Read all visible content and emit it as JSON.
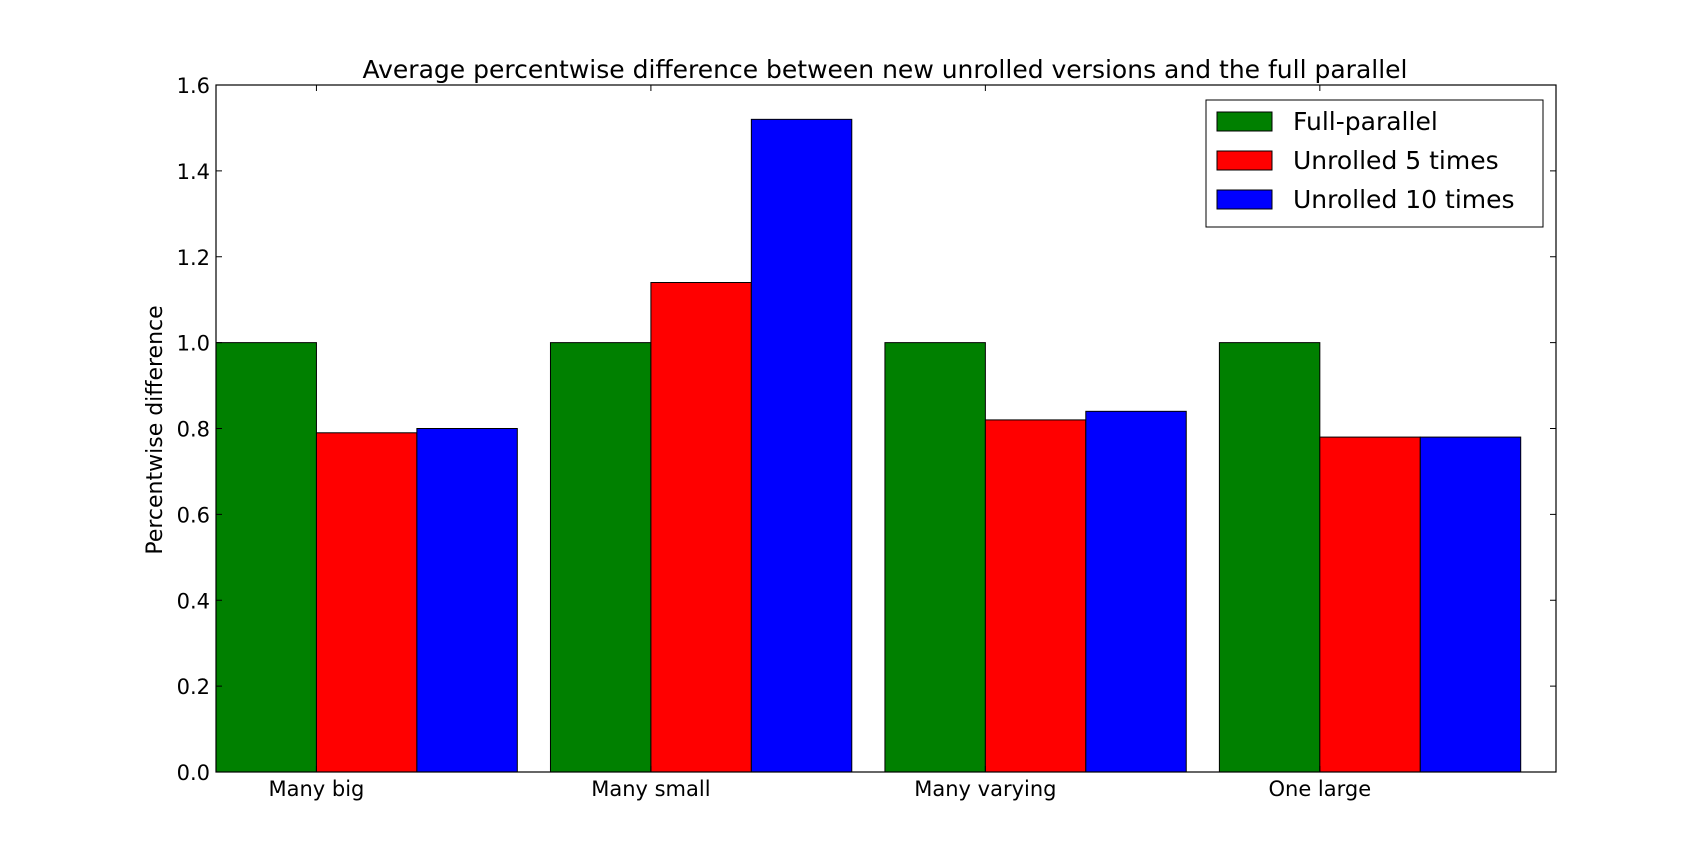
{
  "chart_data": {
    "type": "bar",
    "title": "Average percentwise difference between new unrolled versions and the full parallel",
    "xlabel": "",
    "ylabel": "Percentwise difference",
    "ylim": [
      0.0,
      1.6
    ],
    "yticks": [
      "0.0",
      "0.2",
      "0.4",
      "0.6",
      "0.8",
      "1.0",
      "1.2",
      "1.4",
      "1.6"
    ],
    "categories": [
      "Many big",
      "Many small",
      "Many varying",
      "One large"
    ],
    "series": [
      {
        "name": "Full-parallel",
        "color": "#008000",
        "values": [
          1.0,
          1.0,
          1.0,
          1.0
        ]
      },
      {
        "name": "Unrolled 5 times",
        "color": "#ff0000",
        "values": [
          0.79,
          1.14,
          0.82,
          0.78
        ]
      },
      {
        "name": "Unrolled 10 times",
        "color": "#0000ff",
        "values": [
          0.8,
          1.52,
          0.84,
          0.78
        ]
      }
    ],
    "legend_position": "top-right",
    "grid": false
  }
}
